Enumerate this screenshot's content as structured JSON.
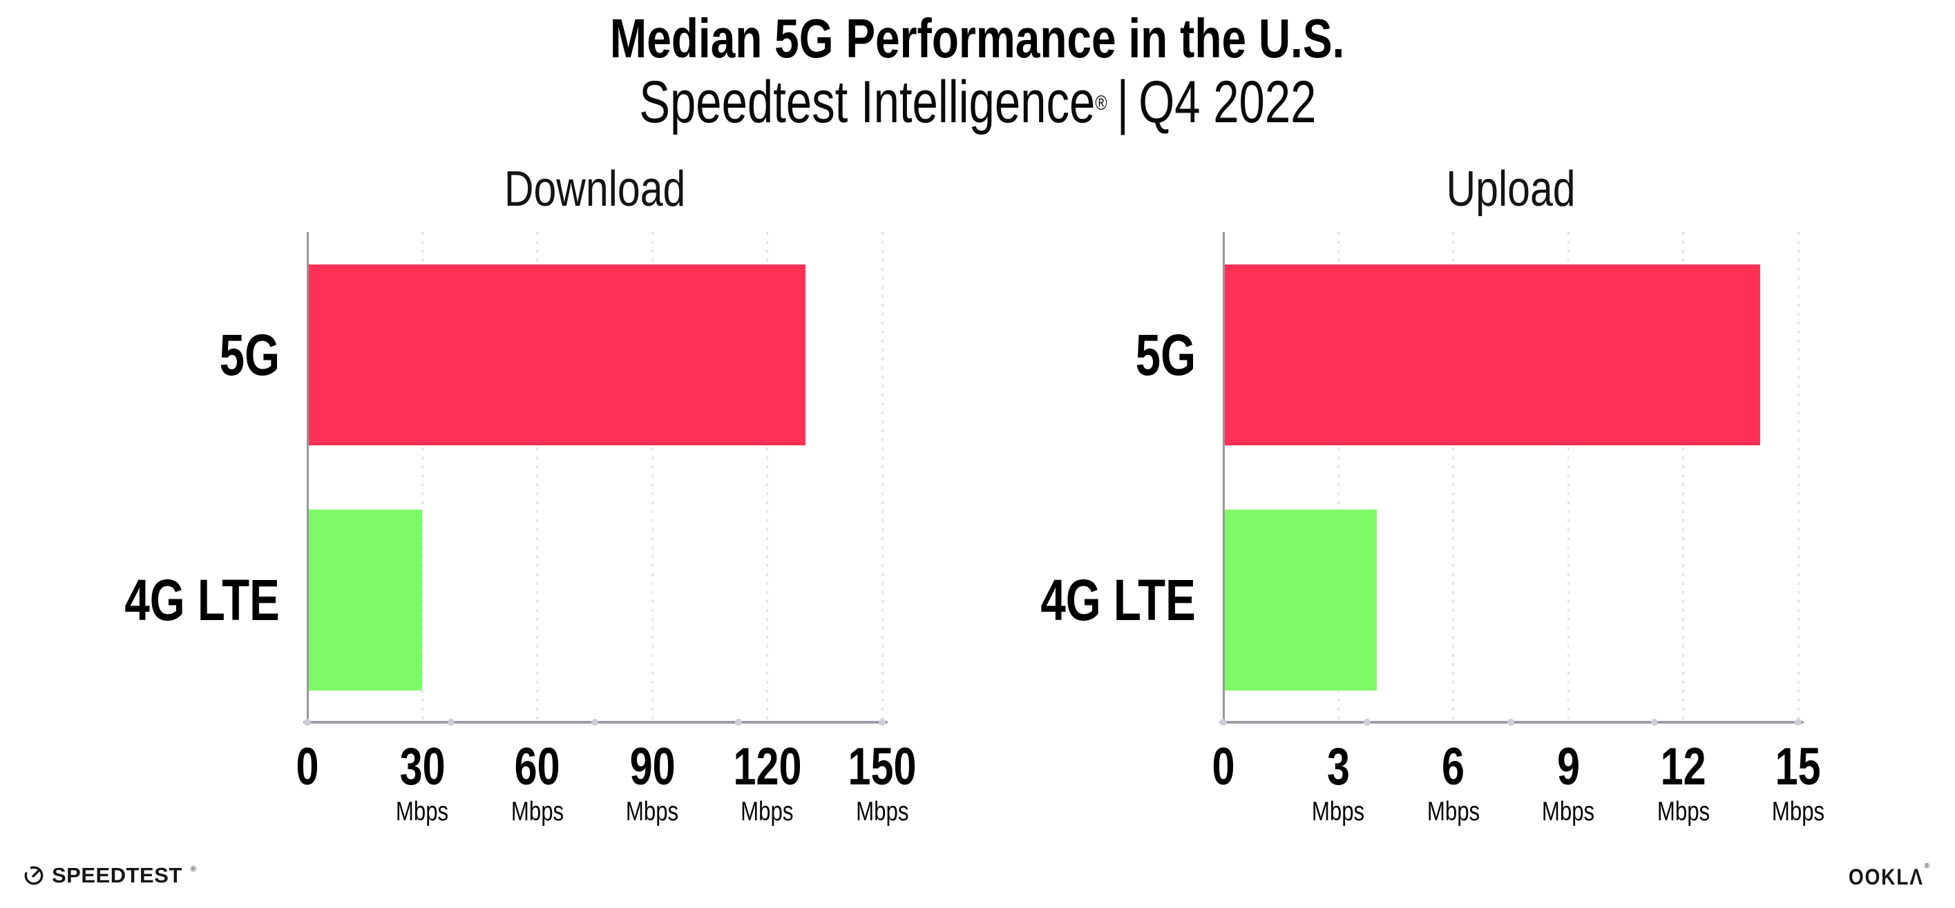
{
  "header": {
    "title": "Median 5G Performance in the U.S.",
    "subtitle_brand": "Speedtest Intelligence",
    "subtitle_reg": "®",
    "subtitle_separator": "|",
    "subtitle_period": "Q4 2022"
  },
  "chart_data": [
    {
      "type": "bar",
      "orientation": "horizontal",
      "title": "Download",
      "categories": [
        "5G",
        "4G LTE"
      ],
      "values": [
        130,
        30
      ],
      "unit": "Mbps",
      "xlim": [
        0,
        150
      ],
      "xticks": [
        0,
        30,
        60,
        90,
        120,
        150
      ],
      "bar_colors": [
        "#FF3056",
        "#7DFB66"
      ],
      "grid": "dotted-vertical-at-ticks",
      "legend_position": "none"
    },
    {
      "type": "bar",
      "orientation": "horizontal",
      "title": "Upload",
      "categories": [
        "5G",
        "4G LTE"
      ],
      "values": [
        14,
        4
      ],
      "unit": "Mbps",
      "xlim": [
        0,
        15
      ],
      "xticks": [
        0,
        3,
        6,
        9,
        12,
        15
      ],
      "bar_colors": [
        "#FF3056",
        "#7DFB66"
      ],
      "grid": "dotted-vertical-at-ticks",
      "legend_position": "none"
    }
  ],
  "footer": {
    "speedtest_text": "SPEEDTEST",
    "speedtest_reg": "®",
    "ookla_text": "OOKLΛ",
    "ookla_reg": "®"
  },
  "colors": {
    "bar_5g": "#FF3056",
    "bar_4g_lte": "#7DFB66",
    "axis_line": "#97979F",
    "baseline": "#9B9BA3",
    "grid_dot": "#E3E3ED",
    "text": "#000000",
    "background": "#FFFFFF"
  }
}
